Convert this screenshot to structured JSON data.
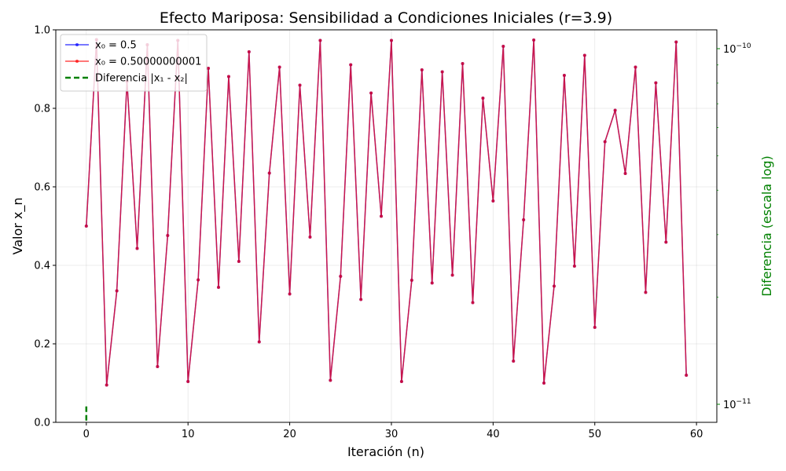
{
  "chart_data": {
    "type": "line",
    "title": "Efecto Mariposa: Sensibilidad a Condiciones Iniciales (r=3.9)",
    "xlabel": "Iteración (n)",
    "ylabel": "Valor x_n",
    "y2label": "Diferencia (escala log)",
    "xlim": [
      -3,
      62
    ],
    "ylim": [
      0,
      1
    ],
    "y2_scale": "log",
    "y2_ticks": [
      {
        "value": 1e-10,
        "base": "10",
        "exp": "−10"
      },
      {
        "value": 1e-11,
        "base": "10",
        "exp": "−11"
      }
    ],
    "x_ticks": [
      0,
      10,
      20,
      30,
      40,
      50,
      60
    ],
    "y_ticks": [
      0.0,
      0.2,
      0.4,
      0.6,
      0.8,
      1.0
    ],
    "y_tick_labels": [
      "0.0",
      "0.2",
      "0.4",
      "0.6",
      "0.8",
      "1.0"
    ],
    "grid": true,
    "legend_position": "top-left",
    "legend": [
      "x₀ = 0.5",
      "x₀ = 0.50000000001",
      "Diferencia |x₁ - x₂|"
    ],
    "x": [
      0,
      1,
      2,
      3,
      4,
      5,
      6,
      7,
      8,
      9,
      10,
      11,
      12,
      13,
      14,
      15,
      16,
      17,
      18,
      19,
      20,
      21,
      22,
      23,
      24,
      25,
      26,
      27,
      28,
      29,
      30,
      31,
      32,
      33,
      34,
      35,
      36,
      37,
      38,
      39,
      40,
      41,
      42,
      43,
      44,
      45,
      46,
      47,
      48,
      49,
      50,
      51,
      52,
      53,
      54,
      55,
      56,
      57,
      58,
      59
    ],
    "series": [
      {
        "name": "x₀ = 0.5",
        "color": "#0000ff",
        "values": [
          0.5,
          0.975,
          0.095,
          0.335,
          0.869,
          0.443,
          0.962,
          0.142,
          0.476,
          0.973,
          0.104,
          0.363,
          0.902,
          0.344,
          0.881,
          0.41,
          0.944,
          0.205,
          0.635,
          0.905,
          0.327,
          0.859,
          0.472,
          0.973,
          0.107,
          0.372,
          0.911,
          0.313,
          0.839,
          0.525,
          0.973,
          0.104,
          0.362,
          0.898,
          0.355,
          0.893,
          0.375,
          0.914,
          0.305,
          0.826,
          0.564,
          0.958,
          0.156,
          0.516,
          0.974,
          0.1,
          0.347,
          0.884,
          0.398,
          0.935,
          0.242,
          0.715,
          0.795,
          0.634,
          0.905,
          0.331,
          0.865,
          0.459,
          0.969,
          0.12
        ]
      },
      {
        "name": "x₀ = 0.50000000001",
        "color": "#ff0000",
        "values": [
          0.5,
          0.975,
          0.095,
          0.335,
          0.869,
          0.443,
          0.962,
          0.142,
          0.476,
          0.973,
          0.104,
          0.363,
          0.902,
          0.344,
          0.881,
          0.41,
          0.944,
          0.205,
          0.635,
          0.905,
          0.327,
          0.859,
          0.472,
          0.973,
          0.107,
          0.372,
          0.911,
          0.313,
          0.839,
          0.525,
          0.973,
          0.104,
          0.362,
          0.898,
          0.355,
          0.893,
          0.375,
          0.914,
          0.305,
          0.826,
          0.564,
          0.958,
          0.156,
          0.516,
          0.974,
          0.1,
          0.347,
          0.884,
          0.398,
          0.935,
          0.242,
          0.715,
          0.795,
          0.634,
          0.905,
          0.331,
          0.865,
          0.459,
          0.969,
          0.12
        ]
      },
      {
        "name": "Diferencia |x₁ - x₂|",
        "color": "#008000",
        "axis": "right",
        "x": [
          0,
          0
        ],
        "values": [
          9e-12,
          1e-11
        ]
      }
    ]
  }
}
